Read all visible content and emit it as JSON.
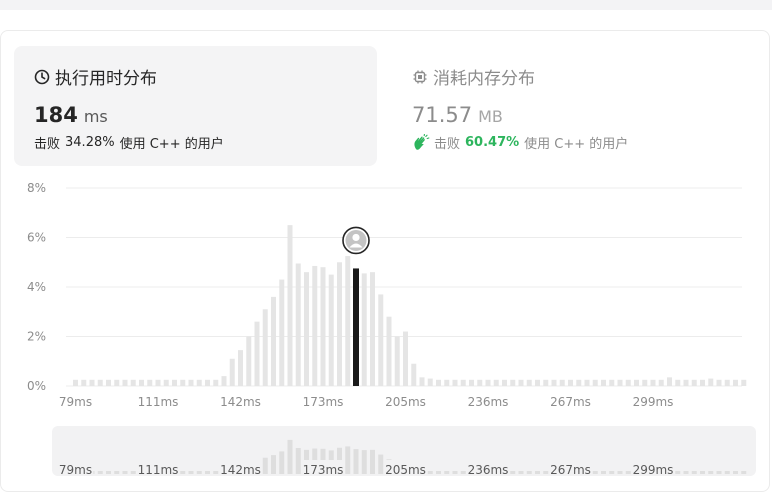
{
  "runtime": {
    "title": "执行用时分布",
    "value": "184",
    "unit": "ms",
    "beat_prefix": "击败",
    "beat_pct": "34.28%",
    "beat_suffix": "使用 C++ 的用户"
  },
  "memory": {
    "title": "消耗内存分布",
    "value": "71.57",
    "unit": "MB",
    "beat_prefix": "击败",
    "beat_pct": "60.47%",
    "beat_suffix": "使用 C++ 的用户"
  },
  "colors": {
    "bar": "#e5e5e5",
    "highlight": "#1a1a1a",
    "grid": "#ececec",
    "axis_text": "#8c8c8c",
    "green": "#2db55d",
    "mini_bar": "#dedede"
  },
  "chart_data": {
    "type": "bar",
    "ylabel": "",
    "xlabel": "",
    "y_ticks": [
      "0%",
      "2%",
      "4%",
      "6%",
      "8%"
    ],
    "ylim": [
      0,
      8
    ],
    "x_ticks": [
      "79ms",
      "111ms",
      "142ms",
      "173ms",
      "205ms",
      "236ms",
      "267ms",
      "299ms"
    ],
    "x_tick_bar_index": [
      0,
      10,
      20,
      30,
      40,
      50,
      60,
      70
    ],
    "values": [
      0.25,
      0.25,
      0.25,
      0.25,
      0.25,
      0.25,
      0.25,
      0.25,
      0.25,
      0.25,
      0.25,
      0.25,
      0.25,
      0.25,
      0.25,
      0.25,
      0.25,
      0.25,
      0.4,
      1.1,
      1.45,
      2.0,
      2.6,
      3.1,
      3.6,
      4.3,
      6.5,
      4.95,
      4.6,
      4.85,
      4.8,
      4.5,
      5.0,
      5.25,
      4.75,
      4.55,
      4.6,
      3.7,
      2.8,
      2.0,
      2.2,
      0.9,
      0.35,
      0.3,
      0.25,
      0.25,
      0.25,
      0.25,
      0.25,
      0.25,
      0.25,
      0.25,
      0.25,
      0.25,
      0.25,
      0.25,
      0.25,
      0.25,
      0.25,
      0.25,
      0.25,
      0.25,
      0.25,
      0.25,
      0.25,
      0.25,
      0.25,
      0.25,
      0.25,
      0.25,
      0.25,
      0.25,
      0.35,
      0.25,
      0.25,
      0.25,
      0.25,
      0.3,
      0.25,
      0.25,
      0.25,
      0.25
    ],
    "highlight_index": 34,
    "highlight_label": "184 ms"
  }
}
